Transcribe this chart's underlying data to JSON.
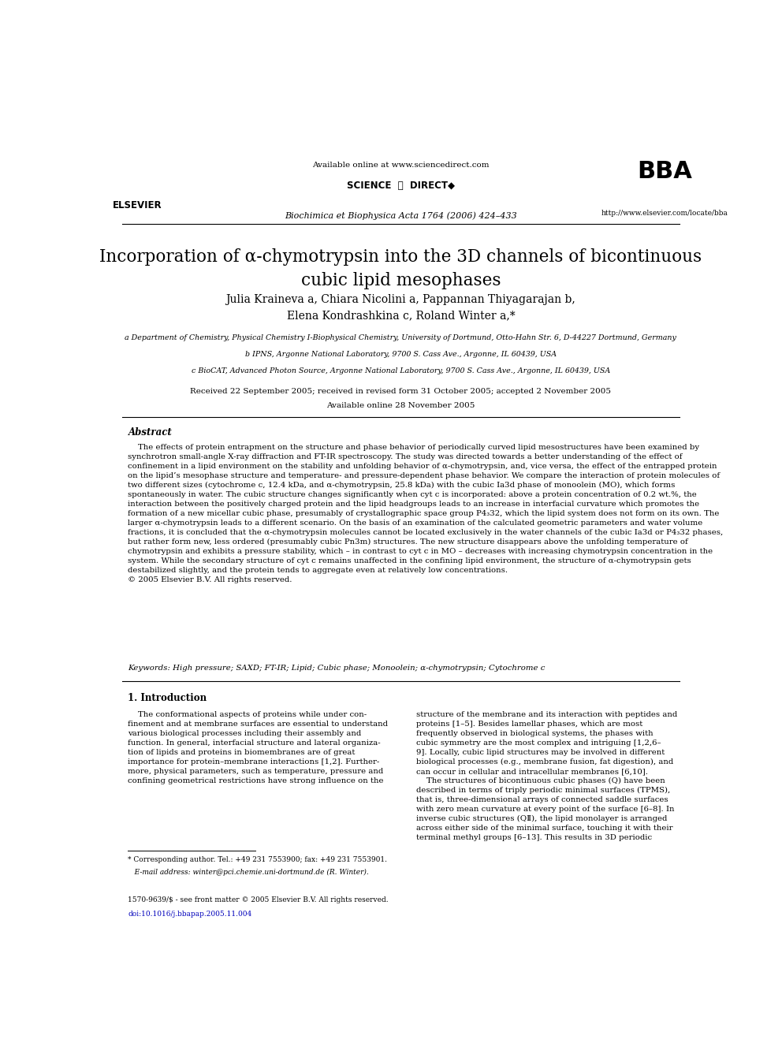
{
  "bg_color": "#ffffff",
  "page_width": 9.92,
  "page_height": 13.23,
  "header": {
    "available_online": "Available online at www.sciencedirect.com",
    "journal": "Biochimica et Biophysica Acta 1764 (2006) 424–433",
    "url": "http://www.elsevier.com/locate/bba"
  },
  "title": "Incorporation of α-chymotrypsin into the 3D channels of bicontinuous\ncubic lipid mesophases",
  "authors": "Julia Kraineva a, Chiara Nicolini a, Pappannan Thiyagarajan b,\nElena Kondrashkina c, Roland Winter a,*",
  "affil_a": "a Department of Chemistry, Physical Chemistry I-Biophysical Chemistry, University of Dortmund, Otto-Hahn Str. 6, D-44227 Dortmund, Germany",
  "affil_b": "b IPNS, Argonne National Laboratory, 9700 S. Cass Ave., Argonne, IL 60439, USA",
  "affil_c": "c BioCAT, Advanced Photon Source, Argonne National Laboratory, 9700 S. Cass Ave., Argonne, IL 60439, USA",
  "received": "Received 22 September 2005; received in revised form 31 October 2005; accepted 2 November 2005",
  "available": "Available online 28 November 2005",
  "abstract_title": "Abstract",
  "abstract_text": "    The effects of protein entrapment on the structure and phase behavior of periodically curved lipid mesostructures have been examined by\nsynchrotron small-angle X-ray diffraction and FT-IR spectroscopy. The study was directed towards a better understanding of the effect of\nconfinement in a lipid environment on the stability and unfolding behavior of α-chymotrypsin, and, vice versa, the effect of the entrapped protein\non the lipid’s mesophase structure and temperature- and pressure-dependent phase behavior. We compare the interaction of protein molecules of\ntwo different sizes (cytochrome c, 12.4 kDa, and α-chymotrypsin, 25.8 kDa) with the cubic Ia3d phase of monoolein (MO), which forms\nspontaneously in water. The cubic structure changes significantly when cyt c is incorporated: above a protein concentration of 0.2 wt.%, the\ninteraction between the positively charged protein and the lipid headgroups leads to an increase in interfacial curvature which promotes the\nformation of a new micellar cubic phase, presumably of crystallographic space group P4₃32, which the lipid system does not form on its own. The\nlarger α-chymotrypsin leads to a different scenario. On the basis of an examination of the calculated geometric parameters and water volume\nfractions, it is concluded that the α-chymotrypsin molecules cannot be located exclusively in the water channels of the cubic Ia3d or P4₃32 phases,\nbut rather form new, less ordered (presumably cubic Pn3m) structures. The new structure disappears above the unfolding temperature of\nchymotrypsin and exhibits a pressure stability, which – in contrast to cyt c in MO – decreases with increasing chymotrypsin concentration in the\nsystem. While the secondary structure of cyt c remains unaffected in the confining lipid environment, the structure of α-chymotrypsin gets\ndestabilized slightly, and the protein tends to aggregate even at relatively low concentrations.\n© 2005 Elsevier B.V. All rights reserved.",
  "keywords": "Keywords: High pressure; SAXD; FT-IR; Lipid; Cubic phase; Monoolein; α-chymotrypsin; Cytochrome c",
  "intro_title": "1. Introduction",
  "intro_left": "    The conformational aspects of proteins while under con-\nfinement and at membrane surfaces are essential to understand\nvarious biological processes including their assembly and\nfunction. In general, interfacial structure and lateral organiza-\ntion of lipids and proteins in biomembranes are of great\nimportance for protein–membrane interactions [1,2]. Further-\nmore, physical parameters, such as temperature, pressure and\nconfining geometrical restrictions have strong influence on the",
  "intro_right": "structure of the membrane and its interaction with peptides and\nproteins [1–5]. Besides lamellar phases, which are most\nfrequently observed in biological systems, the phases with\ncubic symmetry are the most complex and intriguing [1,2,6–\n9]. Locally, cubic lipid structures may be involved in different\nbiological processes (e.g., membrane fusion, fat digestion), and\ncan occur in cellular and intracellular membranes [6,10].\n    The structures of bicontinuous cubic phases (Q) have been\ndescribed in terms of triply periodic minimal surfaces (TPMS),\nthat is, three-dimensional arrays of connected saddle surfaces\nwith zero mean curvature at every point of the surface [6–8]. In\ninverse cubic structures (QⅡ), the lipid monolayer is arranged\nacross either side of the minimal surface, touching it with their\nterminal methyl groups [6–13]. This results in 3D periodic",
  "footnote_star": "* Corresponding author. Tel.: +49 231 7553900; fax: +49 231 7553901.",
  "footnote_email": "   E-mail address: winter@pci.chemie.uni-dortmund.de (R. Winter).",
  "footnote_issn": "1570-9639/$ - see front matter © 2005 Elsevier B.V. All rights reserved.",
  "footnote_doi": "doi:10.1016/j.bbapap.2005.11.004",
  "link_color": "#0000bb",
  "text_color": "#000000"
}
